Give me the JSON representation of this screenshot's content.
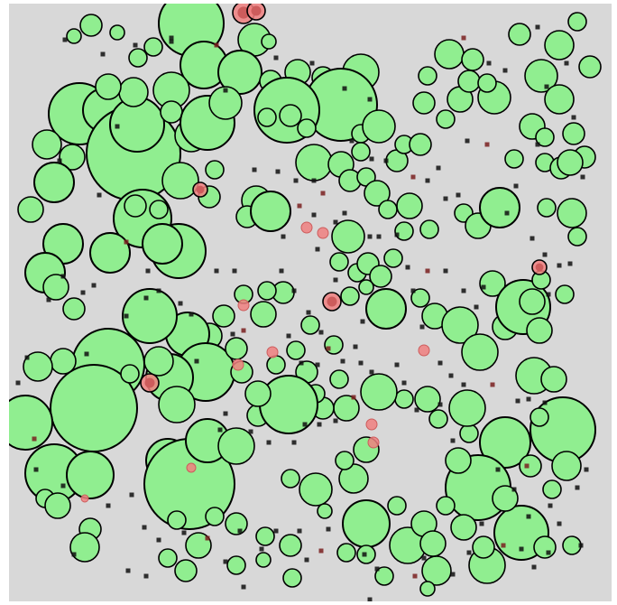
{
  "colors": {
    "arena_bg": "#d8d8d8",
    "player_fill": "#90ee90",
    "enemy_fill": "#f08080",
    "enemy_core": "#cd5c5c",
    "outline": "#000000",
    "speck_dark": "#111111",
    "speck_red": "#7a2020"
  },
  "icons": {
    "player_cell": "circle-green-icon",
    "enemy_cell": "circle-red-icon",
    "food_speck": "square-dot-icon"
  }
}
